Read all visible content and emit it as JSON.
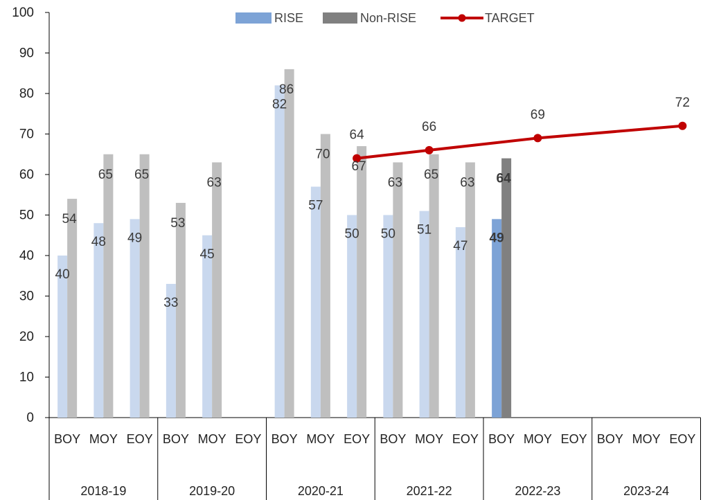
{
  "chart_data": {
    "type": "bar",
    "ylim": [
      0,
      100
    ],
    "y_ticks": [
      0,
      10,
      20,
      30,
      40,
      50,
      60,
      70,
      80,
      90,
      100
    ],
    "grid": false,
    "legend_position": "top-center",
    "groups": [
      {
        "label": "2018-19",
        "categories": [
          "BOY",
          "MOY",
          "EOY"
        ]
      },
      {
        "label": "2019-20",
        "categories": [
          "BOY",
          "MOY",
          "EOY"
        ]
      },
      {
        "label": "2020-21",
        "categories": [
          "BOY",
          "MOY",
          "EOY"
        ]
      },
      {
        "label": "2021-22",
        "categories": [
          "BOY",
          "MOY",
          "EOY"
        ]
      },
      {
        "label": "2022-23",
        "categories": [
          "BOY",
          "MOY",
          "EOY"
        ]
      },
      {
        "label": "2023-24",
        "categories": [
          "BOY",
          "MOY",
          "EOY"
        ]
      }
    ],
    "series": [
      {
        "name": "RISE",
        "type": "bar",
        "color": "#c9d8ee",
        "highlight_color": "#7da3d6",
        "values": [
          40,
          48,
          49,
          33,
          45,
          null,
          82,
          57,
          50,
          50,
          51,
          47,
          49,
          null,
          null,
          null,
          null,
          null
        ]
      },
      {
        "name": "Non-RISE",
        "type": "bar",
        "color": "#bfbfbf",
        "highlight_color": "#808080",
        "values": [
          54,
          65,
          65,
          53,
          63,
          null,
          86,
          70,
          67,
          63,
          65,
          63,
          64,
          null,
          null,
          null,
          null,
          null
        ]
      },
      {
        "name": "TARGET",
        "type": "line",
        "color": "#c00000",
        "values": [
          null,
          null,
          null,
          null,
          null,
          null,
          null,
          null,
          64,
          null,
          66,
          null,
          null,
          69,
          null,
          null,
          null,
          72
        ]
      }
    ],
    "highlight_index": 12,
    "label_color": "#404040",
    "highlight_label_color": "#404040",
    "target_label_color": "#c00000"
  }
}
